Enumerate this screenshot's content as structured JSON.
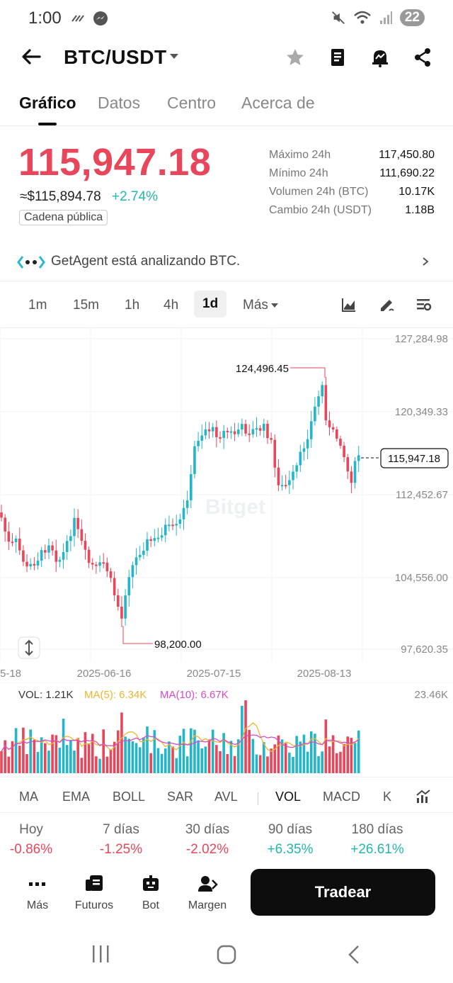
{
  "status_bar": {
    "time": "1:00",
    "battery": "22"
  },
  "header": {
    "pair": "BTC/USDT"
  },
  "tabs": [
    "Gráfico",
    "Datos",
    "Centro",
    "Acerca de"
  ],
  "ticker": {
    "last_price": "115,947.18",
    "usd_equiv": "≈$115,894.78",
    "change_pct": "+2.74%",
    "chain_label": "Cadena pública",
    "stats": [
      {
        "label": "Máximo 24h",
        "value": "117,450.80"
      },
      {
        "label": "Mínimo 24h",
        "value": "111,690.22"
      },
      {
        "label": "Volumen 24h (BTC)",
        "value": "10.17K"
      },
      {
        "label": "Cambio 24h (USDT)",
        "value": "1.18B"
      }
    ]
  },
  "agent_banner": {
    "text": "GetAgent está analizando BTC."
  },
  "intervals": {
    "items": [
      "1m",
      "15m",
      "1h",
      "4h",
      "1d"
    ],
    "more": "Más",
    "active": "1d"
  },
  "chart_data": {
    "type": "candlestick",
    "y_ticks": [
      "127,284.98",
      "120,349.33",
      "112,452.67",
      "104,556.00",
      "97,620.35"
    ],
    "x_ticks": [
      "5-18",
      "2025-06-16",
      "2025-07-15",
      "2025-08-13"
    ],
    "high_label": "124,496.45",
    "low_label": "98,200.00",
    "current_label": "115,947.18",
    "watermark": "Bitget",
    "ylim": [
      97620.35,
      127284.98
    ],
    "grid": true,
    "colors": {
      "up": "#23b5c8",
      "down": "#e8465a"
    },
    "volume": {
      "vol_label": "VOL: 1.21K",
      "ma5_label": "MA(5): 6.34K",
      "ma10_label": "MA(10): 6.67K",
      "max_label": "23.46K",
      "ma5_color": "#e9b630",
      "ma10_color": "#d94ac6"
    }
  },
  "indicators": {
    "items": [
      "MA",
      "EMA",
      "BOLL",
      "SAR",
      "AVL"
    ],
    "sub_items": [
      "VOL",
      "MACD",
      "K"
    ]
  },
  "performance": [
    {
      "label": "Hoy",
      "value": "-0.86%",
      "dir": "down"
    },
    {
      "label": "7 días",
      "value": "-1.25%",
      "dir": "down"
    },
    {
      "label": "30 días",
      "value": "-2.02%",
      "dir": "down"
    },
    {
      "label": "90 días",
      "value": "+6.35%",
      "dir": "up"
    },
    {
      "label": "180 días",
      "value": "+26.61%",
      "dir": "up"
    }
  ],
  "bottom_nav": {
    "more": "Más",
    "futures": "Futuros",
    "bot": "Bot",
    "margin": "Margen",
    "trade": "Tradear"
  }
}
